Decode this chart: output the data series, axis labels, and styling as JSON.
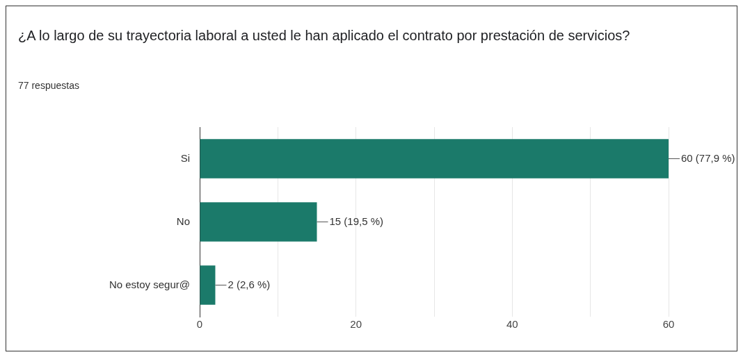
{
  "chart_data": {
    "type": "bar",
    "orientation": "horizontal",
    "title": "¿A lo largo de su trayectoria laboral a usted le han aplicado el contrato por prestación de servicios?",
    "subtitle": "77 respuestas",
    "categories": [
      "Si",
      "No",
      "No estoy segur@"
    ],
    "values": [
      60,
      15,
      2
    ],
    "value_labels": [
      "60 (77,9 %)",
      "15 (19,5 %)",
      "2 (2,6 %)"
    ],
    "color": "#1b7a6a",
    "xlim": [
      0,
      60
    ],
    "xticks": [
      0,
      {
        "value": 10,
        "label": null
      },
      20,
      {
        "value": 30,
        "label": null
      },
      40,
      {
        "value": 50,
        "label": null
      },
      60
    ],
    "grid": "x",
    "legend": false
  }
}
